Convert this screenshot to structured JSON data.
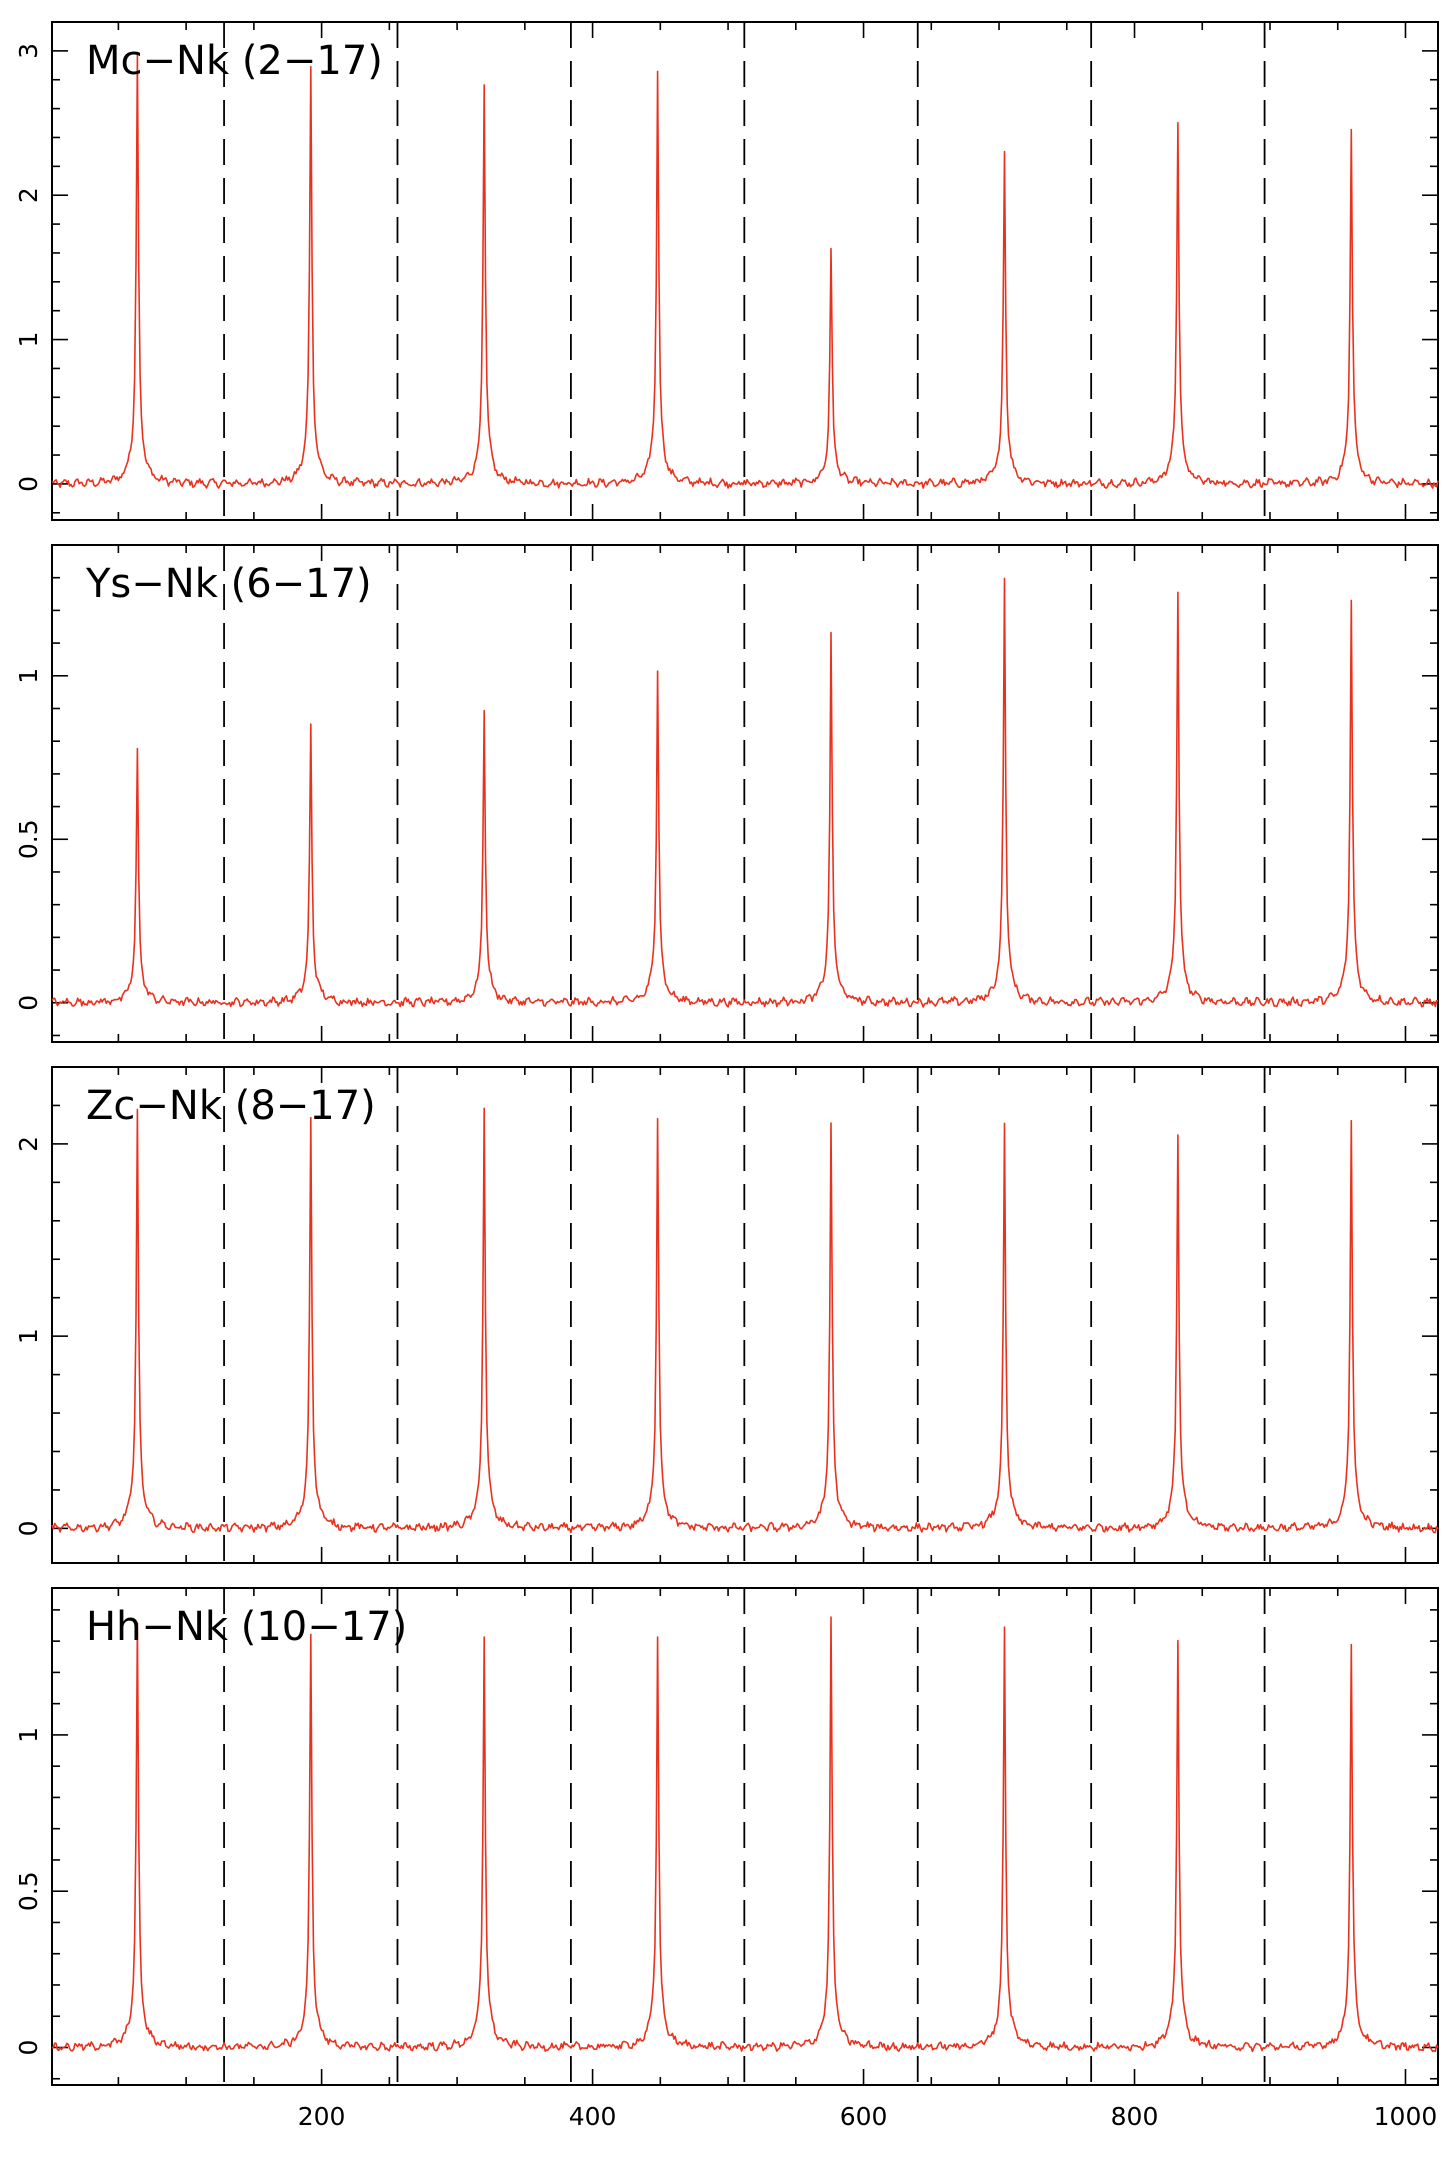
{
  "chart_data": [
    {
      "type": "line",
      "title": "Mc−Nk (2−17)",
      "xlim": [
        1,
        1024
      ],
      "ylim": [
        -0.25,
        3.2
      ],
      "yticks_major": [
        0,
        1,
        2,
        3
      ],
      "ytick_labels": [
        "0",
        "1",
        "2",
        "3"
      ],
      "yticks_minor_step": 0.2,
      "dividers": [
        128,
        256,
        384,
        512,
        640,
        768,
        896
      ],
      "baseline": 0.0,
      "series": [
        {
          "color": "#e8321e",
          "peaks_x": [
            64,
            192,
            320,
            448,
            576,
            704,
            832,
            960
          ],
          "peaks_y": [
            2.62,
            2.54,
            2.43,
            2.5,
            1.41,
            2.03,
            2.2,
            2.15
          ]
        }
      ]
    },
    {
      "type": "line",
      "title": "Ys−Nk (6−17)",
      "xlim": [
        1,
        1024
      ],
      "ylim": [
        -0.12,
        1.4
      ],
      "yticks_major": [
        0,
        0.5,
        1
      ],
      "ytick_labels": [
        "0",
        "0.5",
        "1"
      ],
      "yticks_minor_step": 0.1,
      "dividers": [
        128,
        256,
        384,
        512,
        640,
        768,
        896
      ],
      "baseline": 0.0,
      "series": [
        {
          "color": "#e8321e",
          "peaks_x": [
            64,
            192,
            320,
            448,
            576,
            704,
            832,
            960
          ],
          "peaks_y": [
            0.68,
            0.74,
            0.79,
            0.9,
            0.98,
            1.13,
            1.1,
            1.08
          ]
        }
      ]
    },
    {
      "type": "line",
      "title": "Zc−Nk (8−17)",
      "xlim": [
        1,
        1024
      ],
      "ylim": [
        -0.18,
        2.4
      ],
      "yticks_major": [
        0,
        1,
        2
      ],
      "ytick_labels": [
        "0",
        "1",
        "2"
      ],
      "yticks_minor_step": 0.2,
      "dividers": [
        128,
        256,
        384,
        512,
        640,
        768,
        896
      ],
      "baseline": 0.0,
      "series": [
        {
          "color": "#e8321e",
          "peaks_x": [
            64,
            192,
            320,
            448,
            576,
            704,
            832,
            960
          ],
          "peaks_y": [
            1.9,
            1.88,
            1.93,
            1.88,
            1.84,
            1.83,
            1.79,
            1.86
          ]
        }
      ]
    },
    {
      "type": "line",
      "title": "Hh−Nk (10−17)",
      "xlim": [
        1,
        1024
      ],
      "ylim": [
        -0.12,
        1.47
      ],
      "yticks_major": [
        0,
        0.5,
        1
      ],
      "ytick_labels": [
        "0",
        "0.5",
        "1"
      ],
      "yticks_minor_step": 0.1,
      "dividers": [
        128,
        256,
        384,
        512,
        640,
        768,
        896
      ],
      "baseline": 0.0,
      "xticks_major": [
        200,
        400,
        600,
        800,
        1000
      ],
      "xtick_labels": [
        "200",
        "400",
        "600",
        "800",
        "1000"
      ],
      "xticks_minor_step": 50,
      "series": [
        {
          "color": "#e8321e",
          "peaks_x": [
            64,
            192,
            320,
            448,
            576,
            704,
            832,
            960
          ],
          "peaks_y": [
            1.19,
            1.15,
            1.16,
            1.15,
            1.2,
            1.17,
            1.15,
            1.14
          ]
        }
      ]
    }
  ]
}
